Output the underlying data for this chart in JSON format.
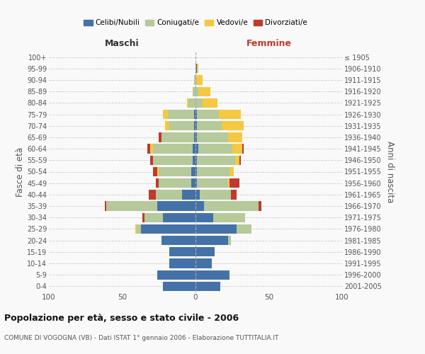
{
  "age_groups": [
    "0-4",
    "5-9",
    "10-14",
    "15-19",
    "20-24",
    "25-29",
    "30-34",
    "35-39",
    "40-44",
    "45-49",
    "50-54",
    "55-59",
    "60-64",
    "65-69",
    "70-74",
    "75-79",
    "80-84",
    "85-89",
    "90-94",
    "95-99",
    "100+"
  ],
  "birth_years": [
    "2001-2005",
    "1996-2000",
    "1991-1995",
    "1986-1990",
    "1981-1985",
    "1976-1980",
    "1971-1975",
    "1966-1970",
    "1961-1965",
    "1956-1960",
    "1951-1955",
    "1946-1950",
    "1941-1945",
    "1936-1940",
    "1931-1935",
    "1926-1930",
    "1921-1925",
    "1916-1920",
    "1911-1915",
    "1906-1910",
    "≤ 1905"
  ],
  "males": {
    "celibi": [
      22,
      26,
      18,
      18,
      23,
      37,
      22,
      26,
      9,
      3,
      3,
      2,
      2,
      1,
      1,
      1,
      0,
      0,
      0,
      0,
      0
    ],
    "coniugati": [
      0,
      0,
      0,
      0,
      0,
      3,
      13,
      35,
      18,
      22,
      22,
      27,
      27,
      22,
      17,
      18,
      5,
      2,
      1,
      0,
      0
    ],
    "vedovi": [
      0,
      0,
      0,
      0,
      0,
      1,
      0,
      0,
      0,
      0,
      1,
      0,
      2,
      0,
      3,
      3,
      1,
      0,
      0,
      0,
      0
    ],
    "divorziati": [
      0,
      0,
      0,
      0,
      0,
      0,
      1,
      1,
      5,
      2,
      3,
      2,
      2,
      2,
      0,
      0,
      0,
      0,
      0,
      0,
      0
    ]
  },
  "females": {
    "nubili": [
      17,
      23,
      11,
      13,
      22,
      28,
      12,
      6,
      3,
      1,
      1,
      1,
      2,
      1,
      1,
      1,
      0,
      0,
      0,
      1,
      0
    ],
    "coniugate": [
      0,
      0,
      0,
      0,
      2,
      10,
      22,
      37,
      21,
      21,
      22,
      26,
      23,
      21,
      17,
      15,
      5,
      2,
      0,
      0,
      0
    ],
    "vedove": [
      0,
      0,
      0,
      0,
      0,
      0,
      0,
      0,
      0,
      1,
      3,
      3,
      7,
      10,
      15,
      15,
      10,
      8,
      5,
      1,
      0
    ],
    "divorziate": [
      0,
      0,
      0,
      0,
      0,
      0,
      0,
      2,
      4,
      7,
      0,
      1,
      1,
      0,
      0,
      0,
      0,
      0,
      0,
      0,
      0
    ]
  },
  "colors": {
    "celibi": "#4472a8",
    "coniugati": "#b5c99a",
    "vedovi": "#f5c842",
    "divorziati": "#c0392b"
  },
  "xlim": 100,
  "title": "Popolazione per età, sesso e stato civile - 2006",
  "subtitle": "COMUNE DI VOGOGNA (VB) - Dati ISTAT 1° gennaio 2006 - Elaborazione TUTTITALIA.IT",
  "ylabel_left": "Fasce di età",
  "ylabel_right": "Anni di nascita",
  "xlabel_left": "Maschi",
  "xlabel_right": "Femmine",
  "bg_color": "#f9f9f9",
  "grid_color": "#cccccc"
}
